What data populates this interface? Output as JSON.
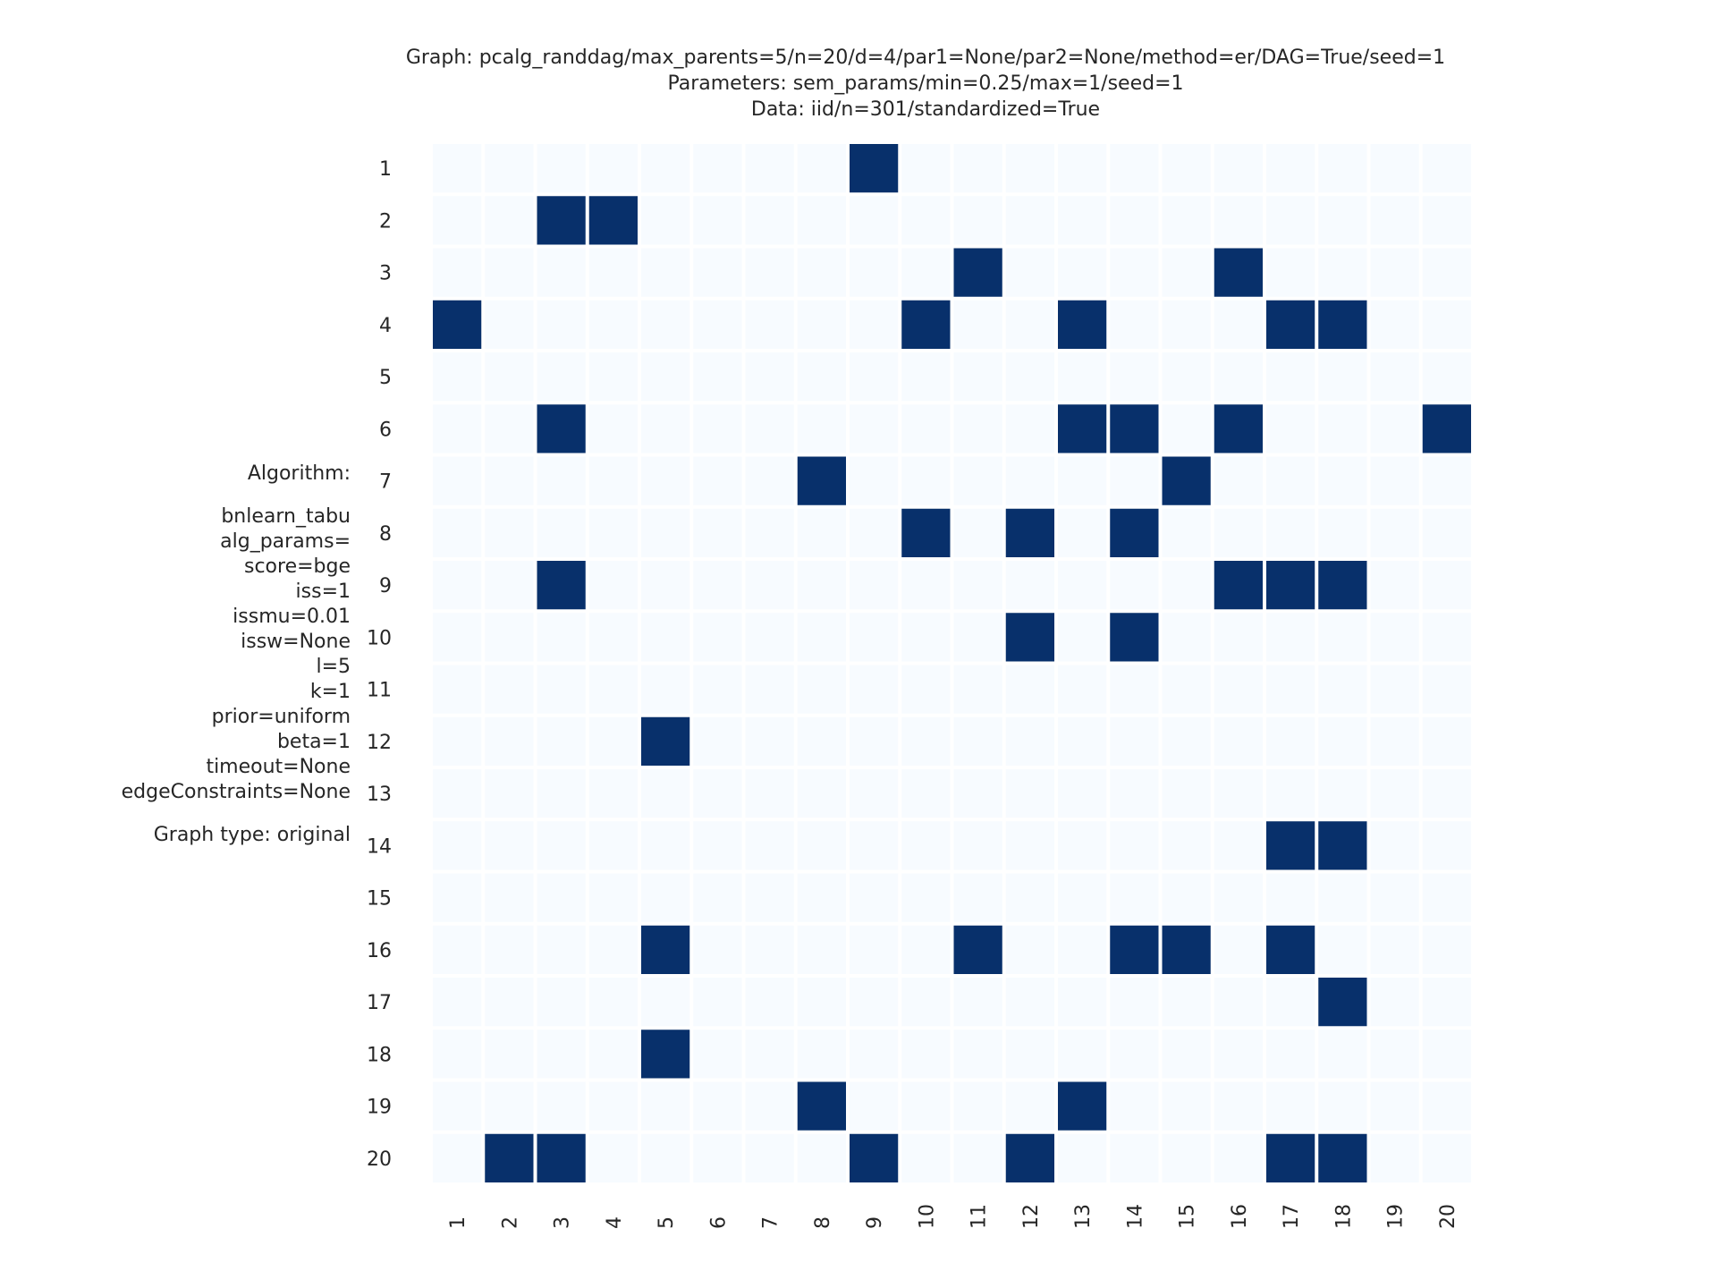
{
  "title_lines": [
    "Graph: pcalg_randdag/max_parents=5/n=20/d=4/par1=None/par2=None/method=er/DAG=True/seed=1",
    "Parameters: sem_params/min=0.25/max=1/seed=1",
    "Data: iid/n=301/standardized=True"
  ],
  "side_info": {
    "algorithm_label": "Algorithm:",
    "algorithm_name": "bnlearn_tabu",
    "params_header": "alg_params=",
    "params": [
      "score=bge",
      "iss=1",
      "issmu=0.01",
      "issw=None",
      "l=5",
      "k=1",
      "prior=uniform",
      "beta=1",
      "timeout=None",
      "edgeConstraints=None"
    ],
    "graph_type": "Graph type: original"
  },
  "chart_data": {
    "type": "heatmap",
    "row_labels": [
      "1",
      "2",
      "3",
      "4",
      "5",
      "6",
      "7",
      "8",
      "9",
      "10",
      "11",
      "12",
      "13",
      "14",
      "15",
      "16",
      "17",
      "18",
      "19",
      "20"
    ],
    "col_labels": [
      "1",
      "2",
      "3",
      "4",
      "5",
      "6",
      "7",
      "8",
      "9",
      "10",
      "11",
      "12",
      "13",
      "14",
      "15",
      "16",
      "17",
      "18",
      "19",
      "20"
    ],
    "edges": {
      "1": [
        9
      ],
      "2": [
        3,
        4
      ],
      "3": [
        11,
        16
      ],
      "4": [
        1,
        10,
        13,
        17,
        18
      ],
      "5": [],
      "6": [
        3,
        13,
        14,
        16,
        20
      ],
      "7": [
        8,
        15
      ],
      "8": [
        10,
        12,
        14
      ],
      "9": [
        3,
        16,
        17,
        18
      ],
      "10": [
        12,
        14
      ],
      "11": [],
      "12": [
        5
      ],
      "13": [],
      "14": [
        17,
        18
      ],
      "15": [],
      "16": [
        5,
        11,
        14,
        15,
        17
      ],
      "17": [
        18
      ],
      "18": [
        5
      ],
      "19": [
        8,
        13
      ],
      "20": [
        2,
        3,
        9,
        12,
        17,
        18
      ]
    },
    "colors": {
      "on": "#08306b",
      "off": "#f7fbff"
    }
  }
}
